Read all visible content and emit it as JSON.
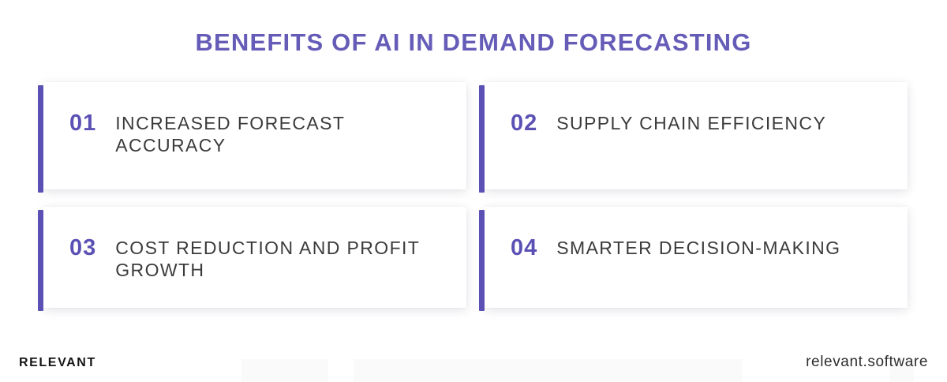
{
  "title": "BENEFITS OF AI IN DEMAND FORECASTING",
  "cards": [
    {
      "number": "01",
      "label": "INCREASED FORECAST ACCURACY"
    },
    {
      "number": "02",
      "label": "SUPPLY CHAIN EFFICIENCY"
    },
    {
      "number": "03",
      "label": "COST REDUCTION AND PROFIT GROWTH"
    },
    {
      "number": "04",
      "label": "SMARTER DECISION-MAKING"
    }
  ],
  "footer": {
    "brand": "RELEVANT",
    "website": "relevant.software"
  },
  "colors": {
    "accent": "#5B51B5",
    "title": "#655CB8",
    "label_text": "#3B3B3B",
    "brand_text": "#151515",
    "card_background": "#FFFFFF",
    "page_background": "#FFFFFF"
  }
}
